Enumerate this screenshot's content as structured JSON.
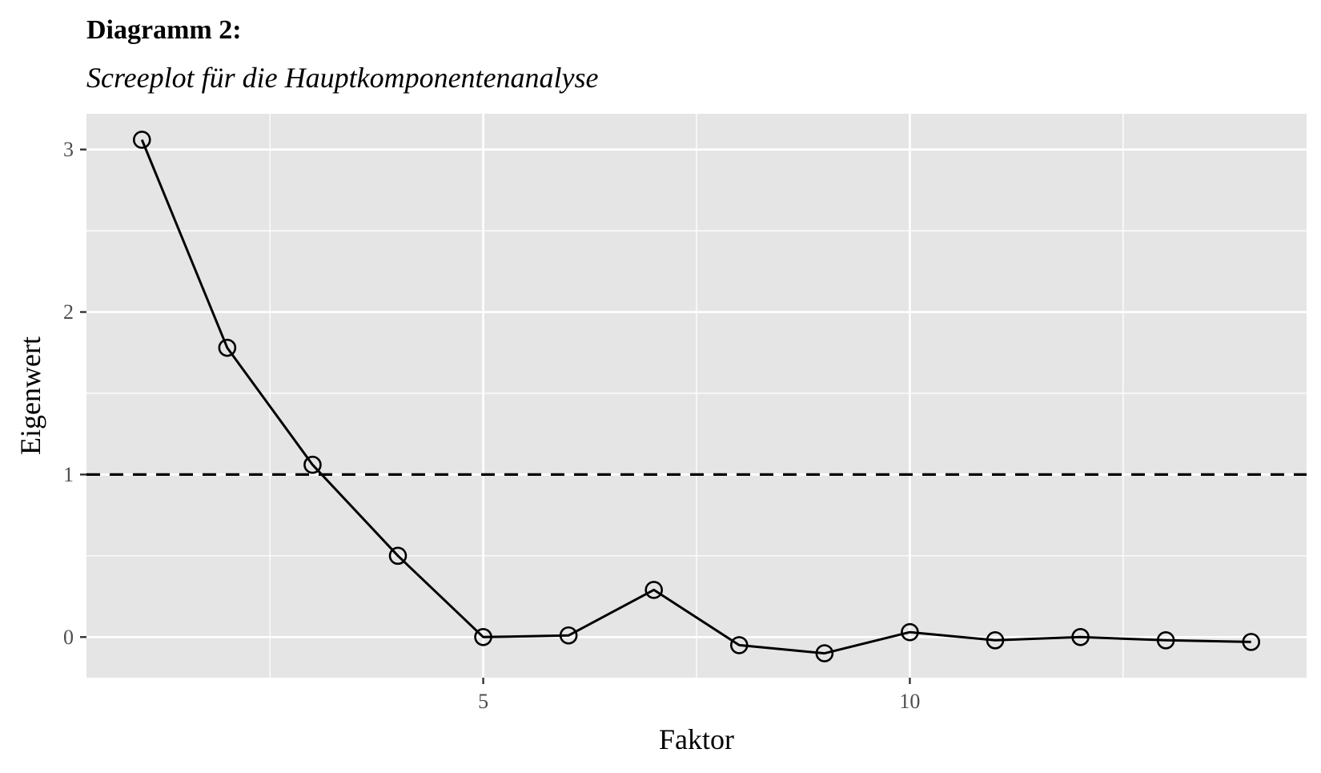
{
  "header": {
    "title": "Diagramm 2:",
    "subtitle": "Screeplot für die Hauptkomponentenanalyse"
  },
  "colors": {
    "panel_background": "#e5e5e5",
    "grid": "#ffffff",
    "line": "#000000",
    "tick_label": "#4d4d4d"
  },
  "chart_data": {
    "type": "line",
    "title": "Diagramm 2:",
    "subtitle": "Screeplot für die Hauptkomponentenanalyse",
    "xlabel": "Faktor",
    "ylabel": "Eigenwert",
    "x": [
      1,
      2,
      3,
      4,
      5,
      6,
      7,
      8,
      9,
      10,
      11,
      12,
      13,
      14
    ],
    "series": [
      {
        "values": [
          3.06,
          1.78,
          1.06,
          0.5,
          0.0,
          0.01,
          0.29,
          -0.05,
          -0.1,
          0.03,
          -0.02,
          0.0,
          -0.02,
          -0.03
        ],
        "marker": "open-circle"
      }
    ],
    "xlim": [
      0.35,
      14.65
    ],
    "ylim": [
      -0.25,
      3.22
    ],
    "xticks": [
      5,
      10
    ],
    "xtick_labels": [
      "5",
      "10"
    ],
    "x_minor_grid": [
      2.5,
      7.5,
      12.5
    ],
    "yticks": [
      0,
      1,
      2,
      3
    ],
    "ytick_labels": [
      "0",
      "1",
      "2",
      "3"
    ],
    "y_minor_grid": [
      0.5,
      1.5,
      2.5
    ],
    "reference_lines": [
      {
        "axis": "y",
        "value": 1,
        "style": "dashed"
      }
    ],
    "grid": true,
    "legend": "none"
  }
}
